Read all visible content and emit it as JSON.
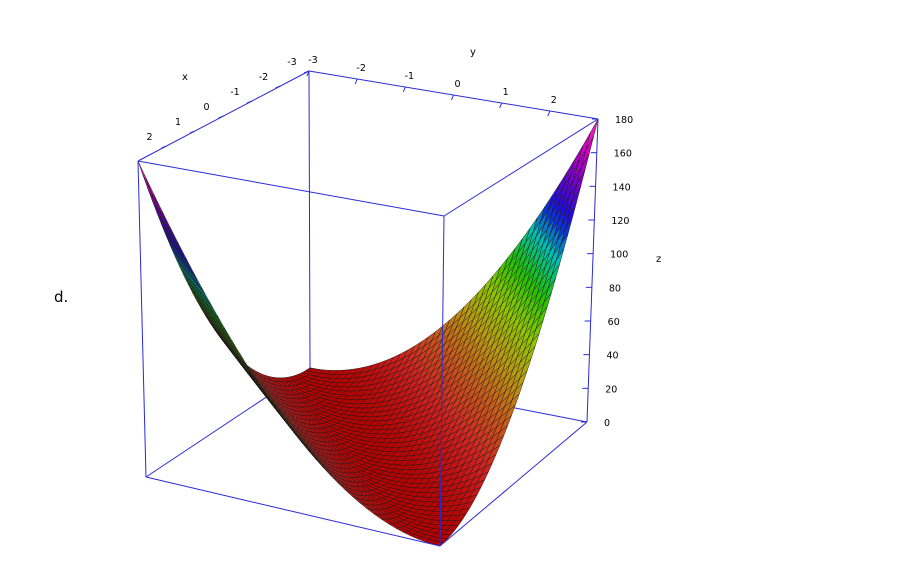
{
  "panel_label": "d.",
  "chart_data": {
    "type": "surface3d",
    "function": "z = ((x+3)^2) * ((y+3)^2) / 4.5",
    "x": {
      "label": "x",
      "range": [
        -3,
        3
      ],
      "ticks": [
        -3,
        -2,
        -1,
        0,
        1,
        2
      ]
    },
    "y": {
      "label": "y",
      "range": [
        -3,
        3
      ],
      "ticks": [
        -3,
        -2,
        -1,
        0,
        1,
        2
      ]
    },
    "z": {
      "label": "z",
      "range": [
        0,
        180
      ],
      "ticks": [
        0,
        20,
        40,
        60,
        80,
        100,
        120,
        140,
        160,
        180
      ]
    },
    "grid_n": 40,
    "colormap": [
      "#b40000",
      "#d02020",
      "#c85a1a",
      "#b89a10",
      "#8cc800",
      "#20c000",
      "#00c0b0",
      "#1010e0",
      "#7000d0",
      "#d000c0",
      "#ff30c0"
    ],
    "box_color": "#2a2ad8"
  }
}
